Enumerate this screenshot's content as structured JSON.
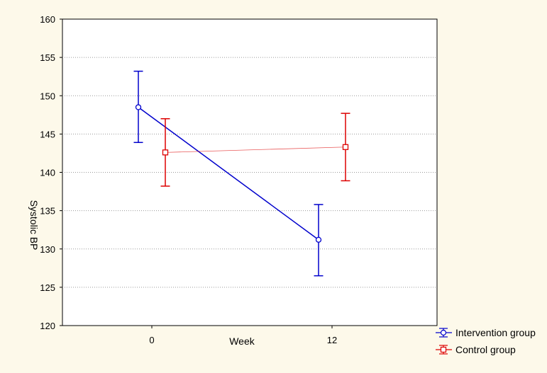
{
  "chart_data": {
    "type": "line",
    "title": "",
    "xlabel": "Week",
    "ylabel": "Systolic BP",
    "categories": [
      "0",
      "12"
    ],
    "ylim": [
      120,
      160
    ],
    "yticks": [
      120,
      125,
      130,
      135,
      140,
      145,
      150,
      155,
      160
    ],
    "grid": true,
    "legend_position": "bottom-right",
    "error_bars": true,
    "series": [
      {
        "name": "Intervention group",
        "color": "#0000cc",
        "marker": "circle",
        "values": [
          148.5,
          131.2
        ],
        "lower": [
          143.9,
          126.5
        ],
        "upper": [
          153.2,
          135.8
        ]
      },
      {
        "name": "Control group",
        "color": "#dd0000",
        "marker": "square",
        "values": [
          142.6,
          143.3
        ],
        "lower": [
          138.2,
          138.9
        ],
        "upper": [
          147.0,
          147.7
        ]
      }
    ]
  }
}
